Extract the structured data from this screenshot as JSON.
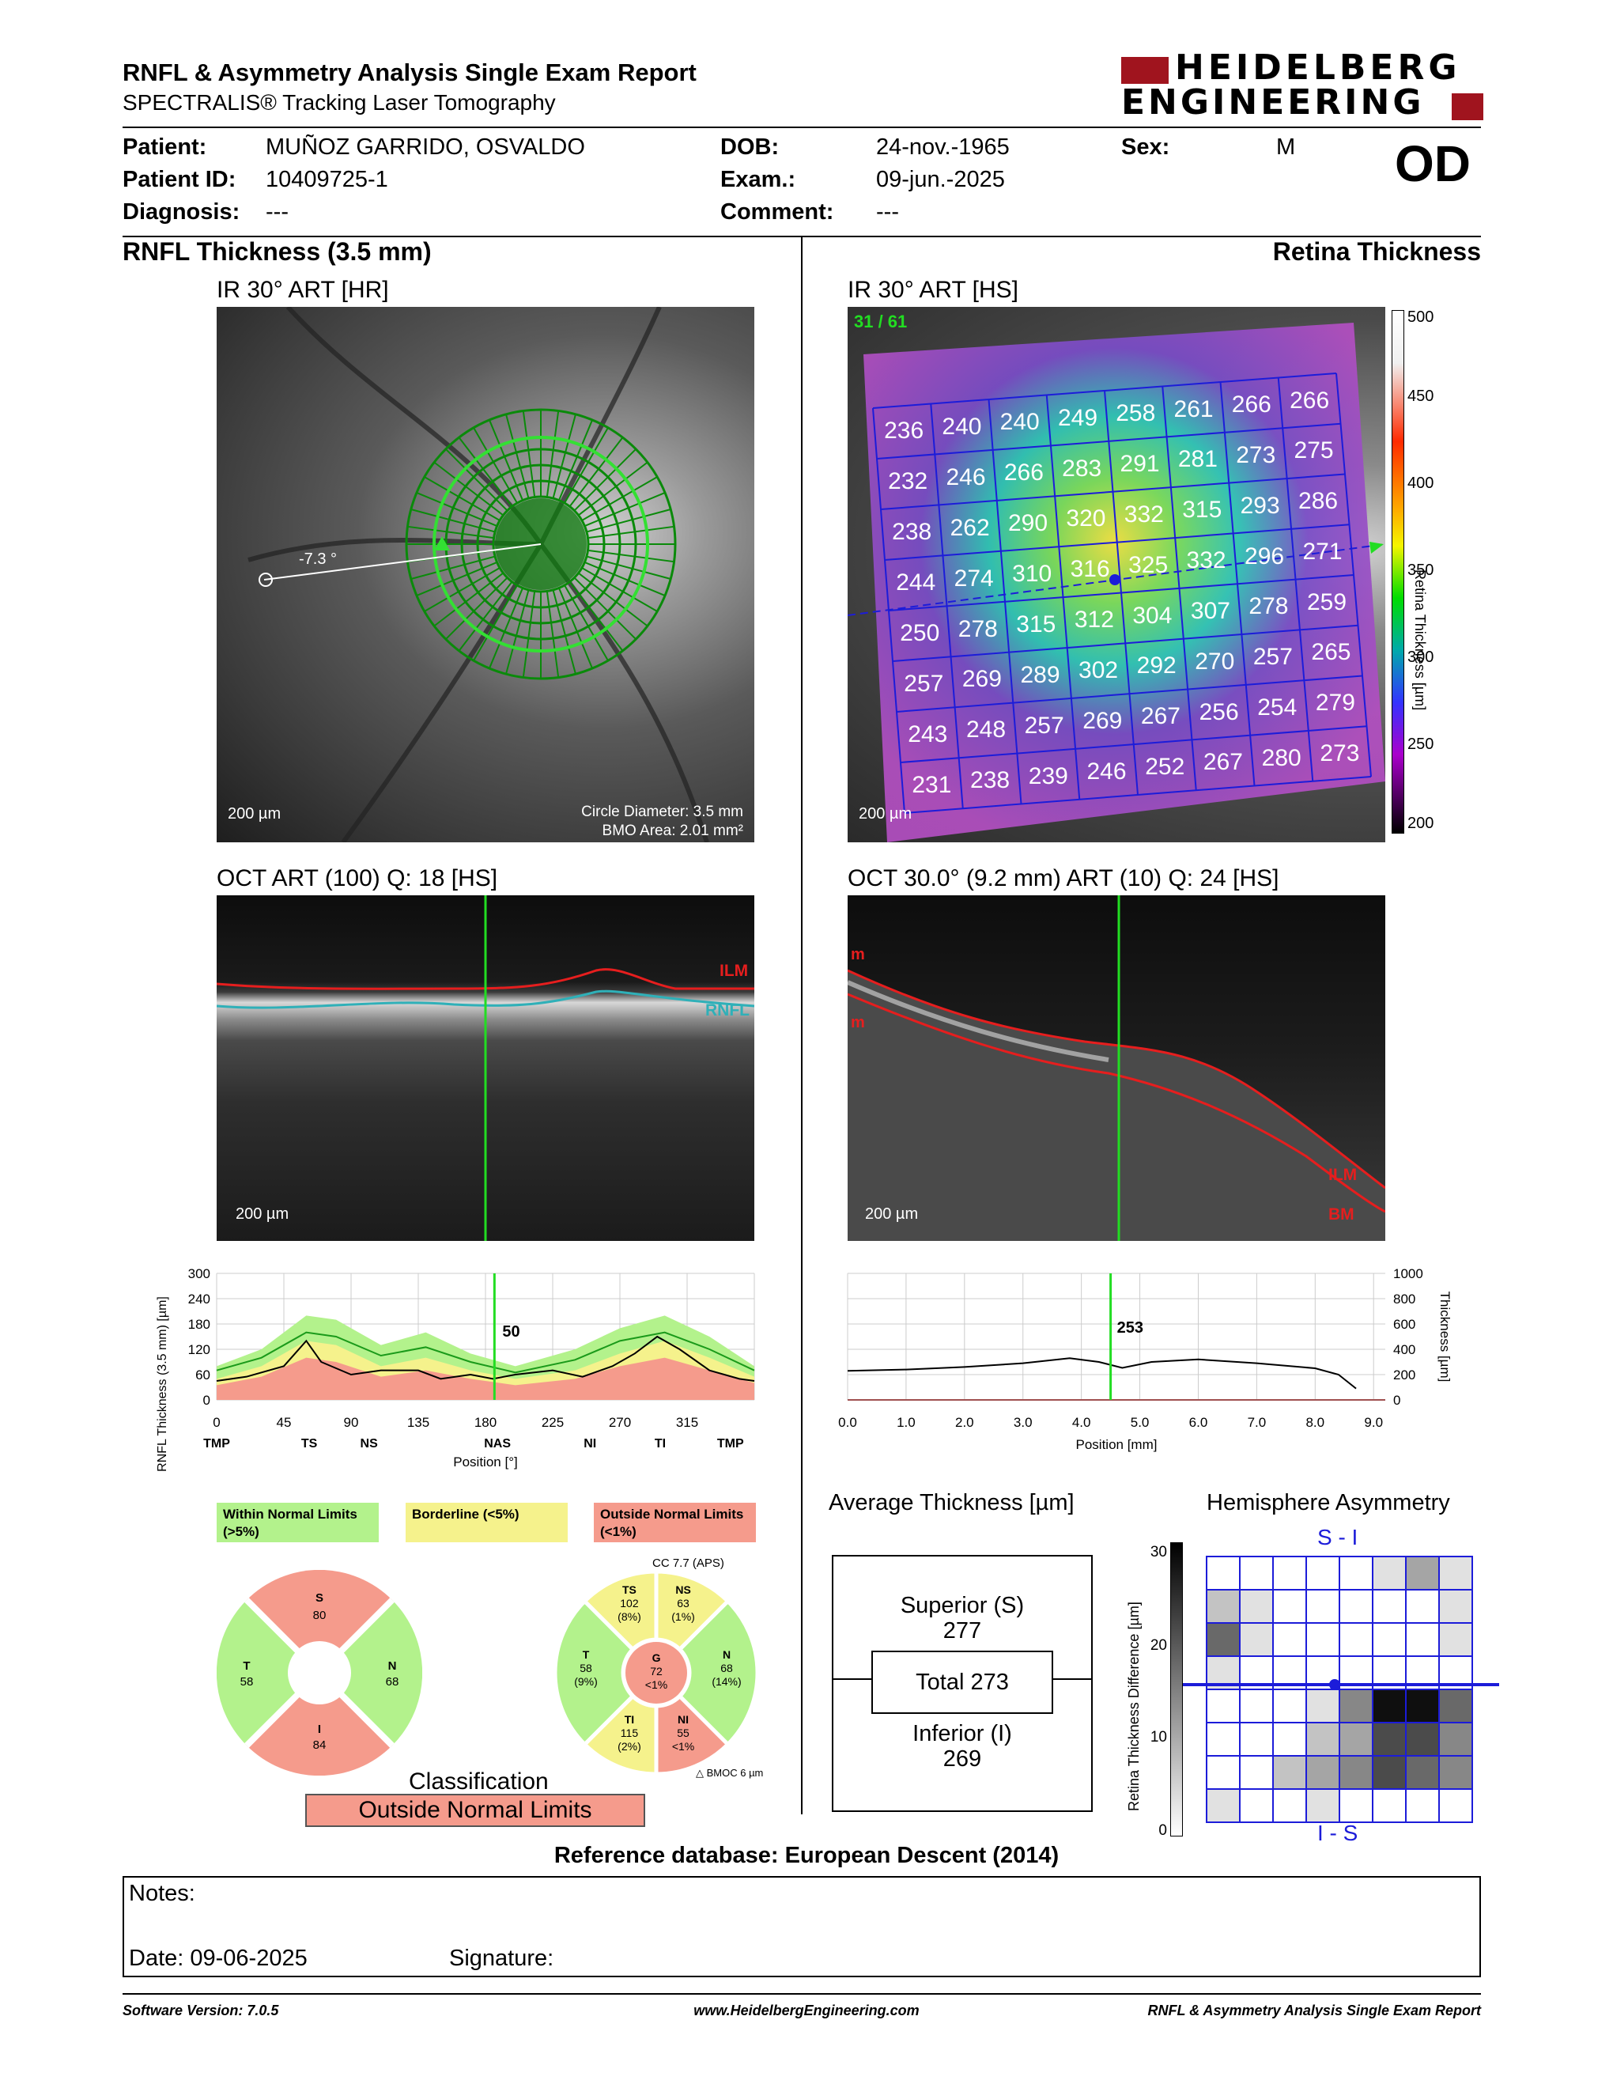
{
  "header": {
    "title": "RNFL & Asymmetry Analysis Single Exam Report",
    "subtitle": "SPECTRALIS® Tracking Laser Tomography",
    "brand_line1": "HEIDELBERG",
    "brand_line2": "ENGINEERING"
  },
  "patient": {
    "patient_label": "Patient:",
    "patient_value": "MUÑOZ GARRIDO, OSVALDO",
    "id_label": "Patient ID:",
    "id_value": "10409725-1",
    "diag_label": "Diagnosis:",
    "diag_value": "---",
    "dob_label": "DOB:",
    "dob_value": "24-nov.-1965",
    "exam_label": "Exam.:",
    "exam_value": "09-jun.-2025",
    "comment_label": "Comment:",
    "comment_value": "---",
    "sex_label": "Sex:",
    "sex_value": "M",
    "eye": "OD"
  },
  "left": {
    "section_title": "RNFL Thickness (3.5 mm)",
    "ir_title": "IR 30° ART [HR]",
    "ir_scale": "200 µm",
    "angle": "-7.3 °",
    "circle_diameter": "Circle Diameter: 3.5 mm",
    "bmo_area": "BMO Area: 2.01 mm²",
    "oct_title": "OCT ART (100) Q: 18 [HS]",
    "oct_scale": "200 µm",
    "ilm_label": "ILM",
    "rnfl_label": "RNFL",
    "graph_ylabel": "RNFL Thickness (3.5 mm) [µm]",
    "graph_yticks": [
      "300",
      "240",
      "180",
      "120",
      "60",
      "0"
    ],
    "graph_xticks": [
      "0",
      "45",
      "90",
      "135",
      "180",
      "225",
      "270",
      "315"
    ],
    "graph_sectors": [
      "TMP",
      "TS",
      "NS",
      "NAS",
      "NI",
      "TI",
      "TMP"
    ],
    "graph_xlabel": "Position [°]",
    "graph_marker": "50",
    "legend": [
      {
        "label": "Within Normal Limits (>5%)",
        "color": "#b3f28c"
      },
      {
        "label": "Borderline (<5%)",
        "color": "#f5f28c"
      },
      {
        "label": "Outside Normal Limits (<1%)",
        "color": "#f59b8c"
      }
    ],
    "cc_label": "CC 7.7 (APS)",
    "bmo_label": "BMOC 6 µm",
    "quad": {
      "S": "80",
      "T": "58",
      "N": "68",
      "I": "84"
    },
    "sectors": {
      "TS": {
        "v": "102",
        "p": "(8%)"
      },
      "NS": {
        "v": "63",
        "p": "(1%)"
      },
      "T": {
        "v": "58",
        "p": "(9%)"
      },
      "G": {
        "v": "72",
        "p": "<1%"
      },
      "N": {
        "v": "68",
        "p": "(14%)"
      },
      "TI": {
        "v": "115",
        "p": "(2%)"
      },
      "NI": {
        "v": "55",
        "p": "<1%"
      }
    },
    "classification_label": "Classification",
    "classification_value": "Outside Normal Limits"
  },
  "right": {
    "section_title": "Retina Thickness",
    "ir_title": "IR 30° ART [HS]",
    "frame": "31 / 61",
    "ir_scale": "200 µm",
    "colorbar_ticks": [
      "500",
      "450",
      "400",
      "350",
      "300",
      "250",
      "200"
    ],
    "colorbar_label": "Retina Thickness [µm]",
    "grid": [
      [
        "236",
        "240",
        "240",
        "249",
        "258",
        "261",
        "266",
        "266"
      ],
      [
        "232",
        "246",
        "266",
        "283",
        "291",
        "281",
        "273",
        "275"
      ],
      [
        "238",
        "262",
        "290",
        "320",
        "332",
        "315",
        "293",
        "286"
      ],
      [
        "244",
        "274",
        "310",
        "316",
        "325",
        "332",
        "296",
        "271"
      ],
      [
        "250",
        "278",
        "315",
        "312",
        "304",
        "307",
        "278",
        "259"
      ],
      [
        "257",
        "269",
        "289",
        "302",
        "292",
        "270",
        "257",
        "265"
      ],
      [
        "243",
        "248",
        "257",
        "269",
        "267",
        "256",
        "254",
        "279"
      ],
      [
        "231",
        "238",
        "239",
        "246",
        "252",
        "267",
        "280",
        "273"
      ]
    ],
    "oct_title": "OCT 30.0° (9.2 mm) ART (10) Q: 24 [HS]",
    "oct_scale": "200 µm",
    "ilm_label": "ILM",
    "bm_label": "BM",
    "m_label": "m",
    "graph_yticks": [
      "1000",
      "800",
      "600",
      "400",
      "200",
      "0"
    ],
    "graph_xticks": [
      "0.0",
      "1.0",
      "2.0",
      "3.0",
      "4.0",
      "5.0",
      "6.0",
      "7.0",
      "8.0",
      "9.0"
    ],
    "graph_ylabel": "Thickness [µm]",
    "graph_xlabel": "Position [mm]",
    "graph_marker": "253",
    "avg_title": "Average Thickness [µm]",
    "superior_label": "Superior (S)",
    "superior_value": "277",
    "total_label": "Total 273",
    "inferior_label": "Inferior (I)",
    "inferior_value": "269",
    "asym_title": "Hemisphere Asymmetry",
    "asym_top": "S - I",
    "asym_bottom": "I - S",
    "asym_ylabel": "Retina Thickness Difference [µm]",
    "asym_ticks": [
      "30",
      "20",
      "10",
      "0"
    ]
  },
  "reference_db": "Reference database: European Descent (2014)",
  "notes_label": "Notes:",
  "date_label": "Date: 09-06-2025",
  "signature_label": "Signature:",
  "footer": {
    "software": "Software Version: 7.0.5",
    "website": "www.HeidelbergEngineering.com",
    "report": "RNFL & Asymmetry Analysis Single Exam Report"
  },
  "colors": {
    "normal_green": "#b3f28c",
    "borderline_yellow": "#f5f28c",
    "outside_red": "#f59b8c",
    "brand_red": "#a0141e",
    "grid_blue": "#1c1cd9"
  }
}
